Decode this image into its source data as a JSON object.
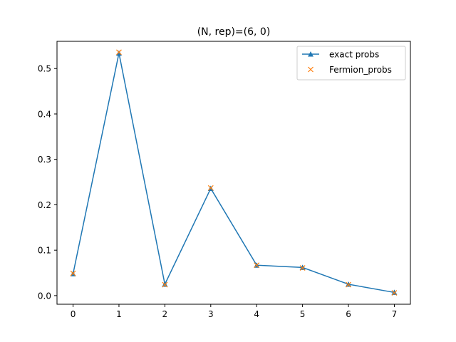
{
  "chart_data": {
    "type": "line",
    "title": "(N, rep)=(6, 0)",
    "xlabel": "",
    "ylabel": "",
    "x": [
      0,
      1,
      2,
      3,
      4,
      5,
      6,
      7
    ],
    "xticks": [
      "0",
      "1",
      "2",
      "3",
      "4",
      "5",
      "6",
      "7"
    ],
    "yticks": [
      "0.0",
      "0.1",
      "0.2",
      "0.3",
      "0.4",
      "0.5"
    ],
    "ytick_values": [
      0.0,
      0.1,
      0.2,
      0.3,
      0.4,
      0.5
    ],
    "xlim": [
      -0.35,
      7.35
    ],
    "ylim": [
      -0.019,
      0.56
    ],
    "grid": false,
    "legend_position": "top-right",
    "series": [
      {
        "name": "exact probs",
        "marker": "triangle",
        "line": true,
        "color": "#1f77b4",
        "values": [
          0.048,
          0.534,
          0.025,
          0.236,
          0.067,
          0.062,
          0.025,
          0.007
        ]
      },
      {
        "name": "Fermion_probs",
        "marker": "x",
        "line": false,
        "color": "#ff7f0e",
        "values": [
          0.049,
          0.536,
          0.024,
          0.237,
          0.067,
          0.061,
          0.024,
          0.006
        ]
      }
    ]
  }
}
